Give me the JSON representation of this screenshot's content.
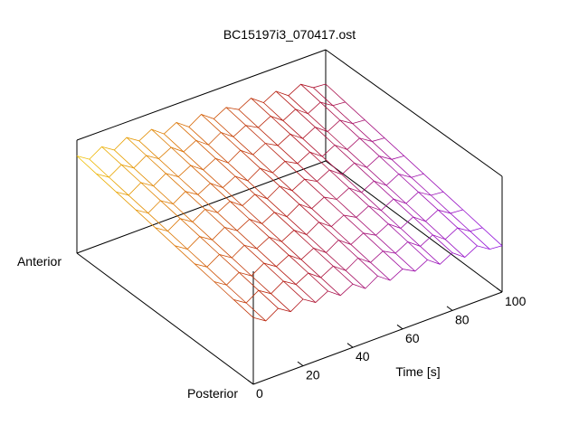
{
  "chart_data": {
    "type": "surface",
    "title": "BC15197i3_070417.ost",
    "xlabel": "Time [s]",
    "x": [
      0,
      5,
      10,
      15,
      20,
      25,
      30,
      35,
      40,
      45,
      50,
      55,
      60,
      65,
      70,
      75,
      80,
      85,
      90,
      95,
      100
    ],
    "xlim": [
      0,
      100
    ],
    "xticks": [
      0,
      20,
      40,
      60,
      80,
      100
    ],
    "ycategories": [
      "Posterior",
      null,
      null,
      null,
      null,
      null,
      null,
      null,
      null,
      "Anterior"
    ],
    "zlim": [
      0,
      1
    ],
    "z": [
      [
        0.59,
        0.52,
        0.59,
        0.52,
        0.59,
        0.52,
        0.58,
        0.5,
        0.56,
        0.48,
        0.55,
        0.47,
        0.53,
        0.47,
        0.53,
        0.45,
        0.51,
        0.43,
        0.49,
        0.42,
        0.41
      ],
      [
        0.62,
        0.55,
        0.62,
        0.55,
        0.62,
        0.55,
        0.61,
        0.53,
        0.59,
        0.51,
        0.58,
        0.5,
        0.56,
        0.5,
        0.56,
        0.48,
        0.54,
        0.46,
        0.52,
        0.45,
        0.44
      ],
      [
        0.65,
        0.58,
        0.65,
        0.58,
        0.65,
        0.58,
        0.64,
        0.56,
        0.62,
        0.54,
        0.61,
        0.53,
        0.59,
        0.53,
        0.59,
        0.51,
        0.57,
        0.49,
        0.55,
        0.48,
        0.47
      ],
      [
        0.68,
        0.61,
        0.68,
        0.61,
        0.68,
        0.61,
        0.67,
        0.59,
        0.65,
        0.57,
        0.64,
        0.56,
        0.62,
        0.56,
        0.62,
        0.54,
        0.6,
        0.52,
        0.58,
        0.51,
        0.5
      ],
      [
        0.71,
        0.64,
        0.71,
        0.64,
        0.71,
        0.64,
        0.7,
        0.62,
        0.68,
        0.6,
        0.67,
        0.59,
        0.65,
        0.59,
        0.65,
        0.57,
        0.63,
        0.55,
        0.61,
        0.54,
        0.53
      ],
      [
        0.74,
        0.67,
        0.74,
        0.67,
        0.74,
        0.67,
        0.73,
        0.65,
        0.71,
        0.63,
        0.7,
        0.62,
        0.68,
        0.62,
        0.68,
        0.6,
        0.66,
        0.58,
        0.64,
        0.57,
        0.56
      ],
      [
        0.77,
        0.7,
        0.77,
        0.7,
        0.77,
        0.7,
        0.76,
        0.68,
        0.74,
        0.66,
        0.73,
        0.65,
        0.71,
        0.65,
        0.71,
        0.63,
        0.69,
        0.61,
        0.67,
        0.6,
        0.59
      ],
      [
        0.8,
        0.73,
        0.8,
        0.73,
        0.8,
        0.73,
        0.79,
        0.71,
        0.77,
        0.69,
        0.76,
        0.68,
        0.74,
        0.68,
        0.74,
        0.66,
        0.72,
        0.64,
        0.7,
        0.63,
        0.62
      ],
      [
        0.83,
        0.76,
        0.83,
        0.76,
        0.83,
        0.76,
        0.82,
        0.74,
        0.8,
        0.72,
        0.79,
        0.71,
        0.77,
        0.71,
        0.77,
        0.69,
        0.75,
        0.67,
        0.73,
        0.66,
        0.65
      ],
      [
        0.86,
        0.79,
        0.86,
        0.79,
        0.86,
        0.79,
        0.85,
        0.77,
        0.83,
        0.75,
        0.82,
        0.74,
        0.8,
        0.74,
        0.8,
        0.72,
        0.78,
        0.7,
        0.76,
        0.69,
        0.68
      ]
    ],
    "colors": [
      "#f0c000",
      "#d86a00",
      "#b01010",
      "#a010a0",
      "#9010e0"
    ]
  }
}
